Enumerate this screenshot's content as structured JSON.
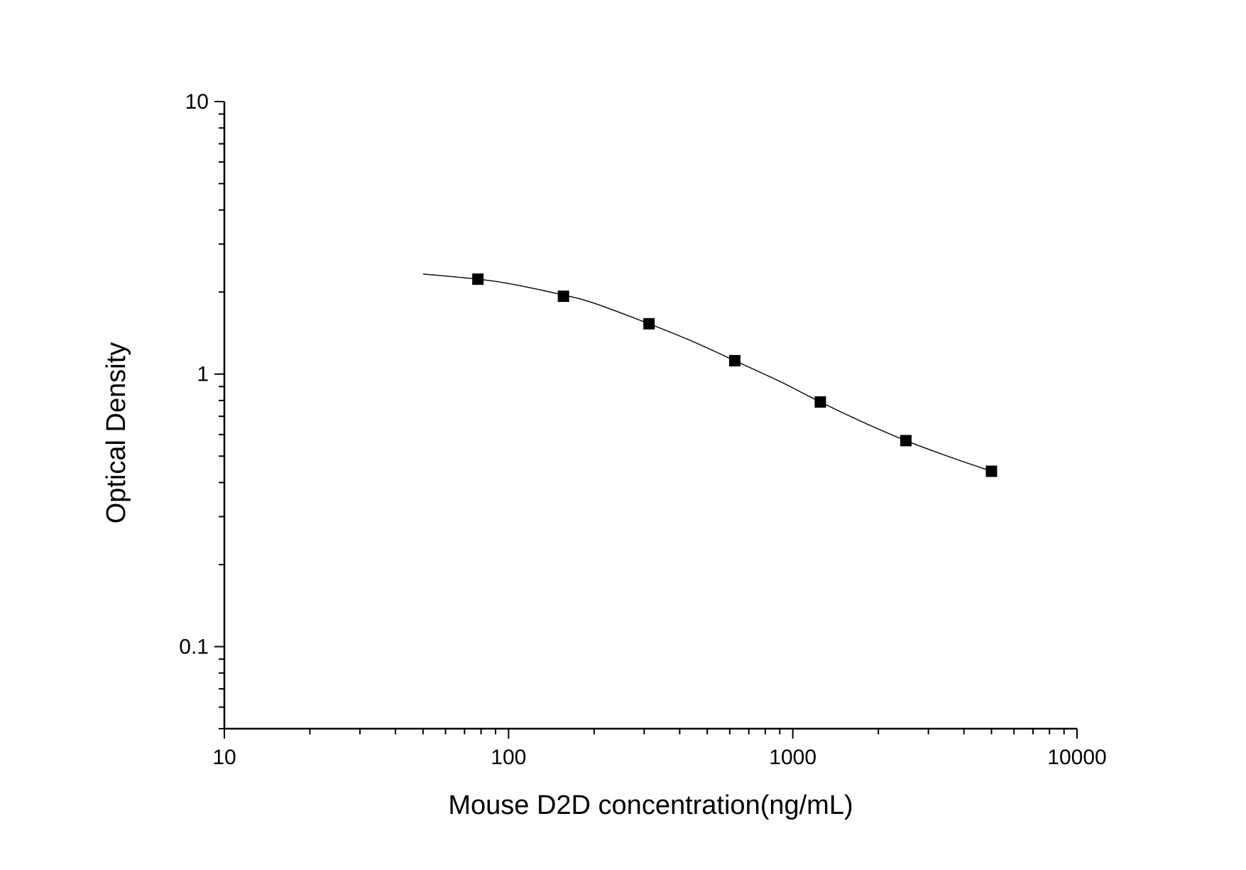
{
  "chart_data": {
    "type": "scatter",
    "title": "",
    "xlabel": "Mouse D2D concentration(ng/mL)",
    "ylabel": "Optical Density",
    "xscale": "log",
    "yscale": "log",
    "xlim": [
      10,
      10000
    ],
    "ylim": [
      0.05,
      10
    ],
    "xticks": [
      10,
      100,
      1000,
      10000
    ],
    "xtick_labels": [
      "10",
      "100",
      "1000",
      "10000"
    ],
    "yticks": [
      0.1,
      1,
      10
    ],
    "ytick_labels": [
      "0.1",
      "1",
      "10"
    ],
    "grid": false,
    "legend": "none",
    "marker_color": "#000000",
    "line_color": "#000000",
    "points": [
      {
        "x": 78,
        "y": 2.23
      },
      {
        "x": 156,
        "y": 1.93
      },
      {
        "x": 312,
        "y": 1.53
      },
      {
        "x": 625,
        "y": 1.12
      },
      {
        "x": 1250,
        "y": 0.79
      },
      {
        "x": 2500,
        "y": 0.57
      },
      {
        "x": 5000,
        "y": 0.44
      }
    ],
    "fit_curve": {
      "model": "4-parameter logistic",
      "x_range": [
        50,
        5000
      ],
      "points": [
        {
          "x": 50,
          "y": 2.33
        },
        {
          "x": 78,
          "y": 2.23
        },
        {
          "x": 100,
          "y": 2.15
        },
        {
          "x": 156,
          "y": 1.95
        },
        {
          "x": 200,
          "y": 1.82
        },
        {
          "x": 312,
          "y": 1.53
        },
        {
          "x": 450,
          "y": 1.31
        },
        {
          "x": 625,
          "y": 1.12
        },
        {
          "x": 900,
          "y": 0.94
        },
        {
          "x": 1250,
          "y": 0.79
        },
        {
          "x": 1800,
          "y": 0.66
        },
        {
          "x": 2500,
          "y": 0.57
        },
        {
          "x": 3500,
          "y": 0.5
        },
        {
          "x": 5000,
          "y": 0.44
        }
      ]
    }
  }
}
